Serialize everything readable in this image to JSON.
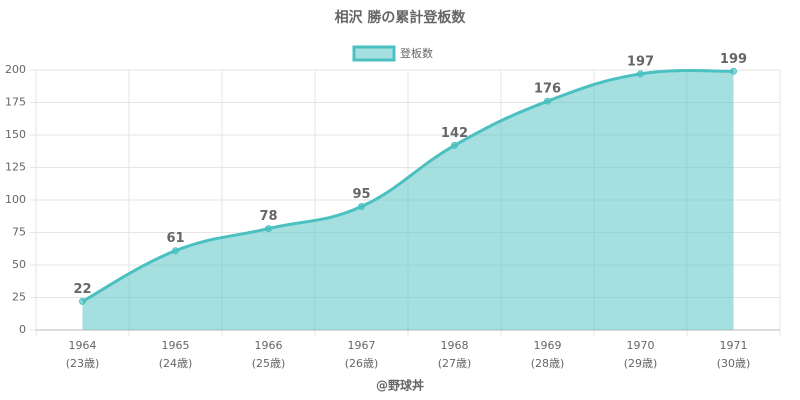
{
  "chart_data": {
    "type": "area",
    "title": "相沢 勝の累計登板数",
    "categories": [
      [
        "1964",
        "(23歳)"
      ],
      [
        "1965",
        "(24歳)"
      ],
      [
        "1966",
        "(25歳)"
      ],
      [
        "1967",
        "(26歳)"
      ],
      [
        "1968",
        "(27歳)"
      ],
      [
        "1969",
        "(28歳)"
      ],
      [
        "1970",
        "(29歳)"
      ],
      [
        "1971",
        "(30歳)"
      ]
    ],
    "series": [
      {
        "name": "登板数",
        "color": "#4bc0c0",
        "values": [
          22,
          61,
          78,
          95,
          142,
          176,
          197,
          199
        ]
      }
    ],
    "ylim": [
      0,
      200
    ],
    "yticks": [
      0,
      25,
      50,
      75,
      100,
      125,
      150,
      175,
      200
    ],
    "grid": true,
    "legend": "top",
    "xlabel": "@野球丼"
  }
}
